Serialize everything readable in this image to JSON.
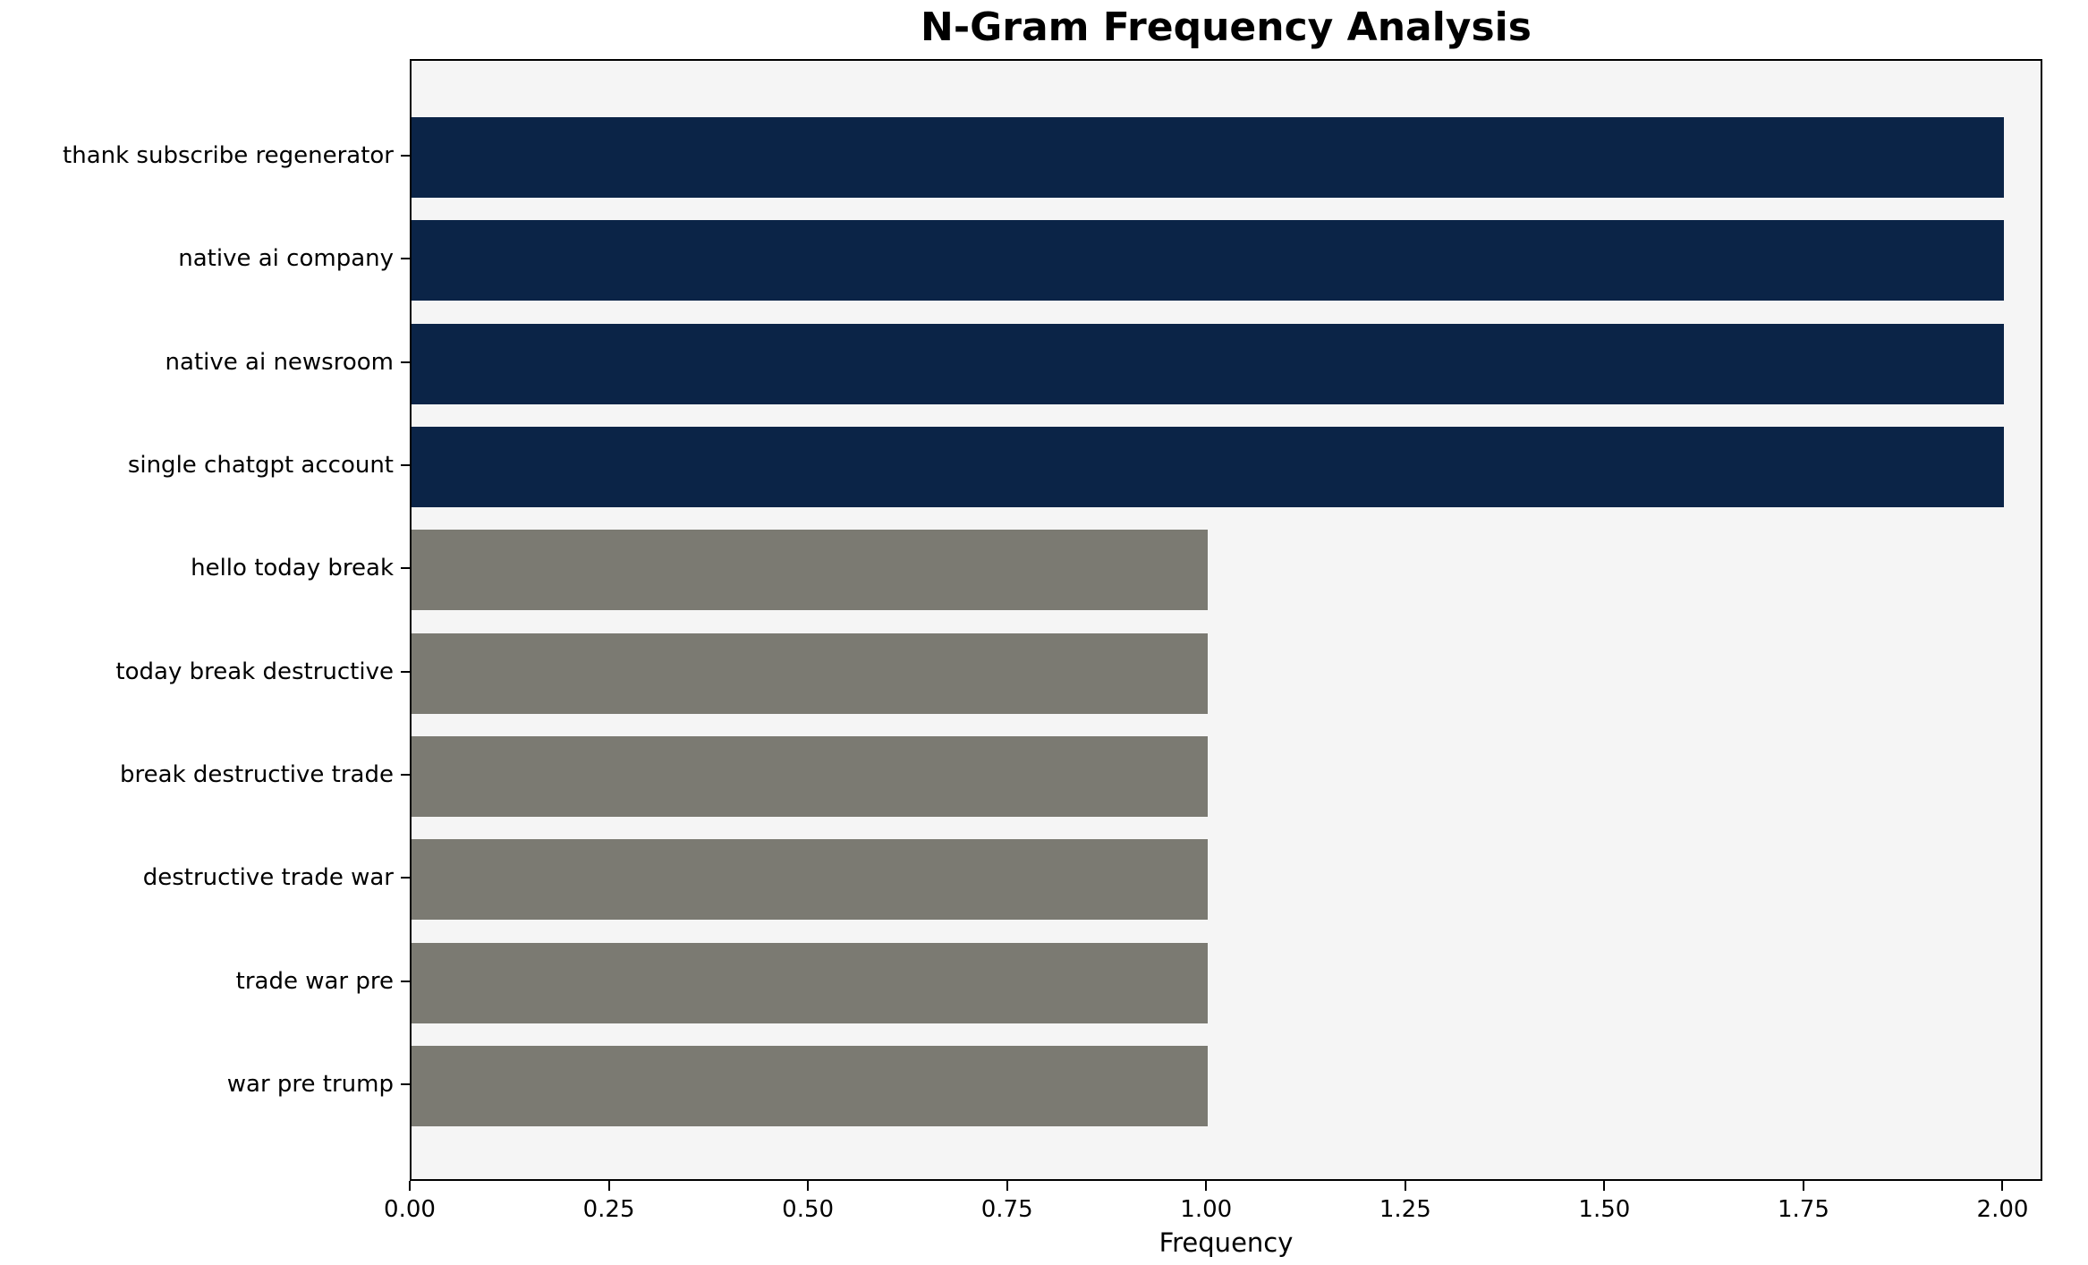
{
  "chart_data": {
    "type": "bar",
    "orientation": "horizontal",
    "title": "N-Gram Frequency Analysis",
    "xlabel": "Frequency",
    "ylabel": "",
    "categories": [
      "thank subscribe regenerator",
      "native ai company",
      "native ai newsroom",
      "single chatgpt account",
      "hello today break",
      "today break destructive",
      "break destructive trade",
      "destructive trade war",
      "trade war pre",
      "war pre trump"
    ],
    "values": [
      2,
      2,
      2,
      2,
      1,
      1,
      1,
      1,
      1,
      1
    ],
    "bar_colors": [
      "#0b2447",
      "#0b2447",
      "#0b2447",
      "#0b2447",
      "#7b7a72",
      "#7b7a72",
      "#7b7a72",
      "#7b7a72",
      "#7b7a72",
      "#7b7a72"
    ],
    "xlim": [
      0,
      2.05
    ],
    "xticks": [
      0,
      0.25,
      0.5,
      0.75,
      1,
      1.25,
      1.5,
      1.75,
      2
    ],
    "xtick_labels": [
      "0.00",
      "0.25",
      "0.50",
      "0.75",
      "1.00",
      "1.25",
      "1.50",
      "1.75",
      "2.00"
    ],
    "grid": false,
    "legend": false,
    "colors": {
      "highlight_bar": "#0b2447",
      "default_bar": "#7b7a72",
      "plot_background": "#f5f5f5",
      "figure_background": "#ffffff",
      "axis_line": "#000000",
      "text": "#000000"
    }
  }
}
